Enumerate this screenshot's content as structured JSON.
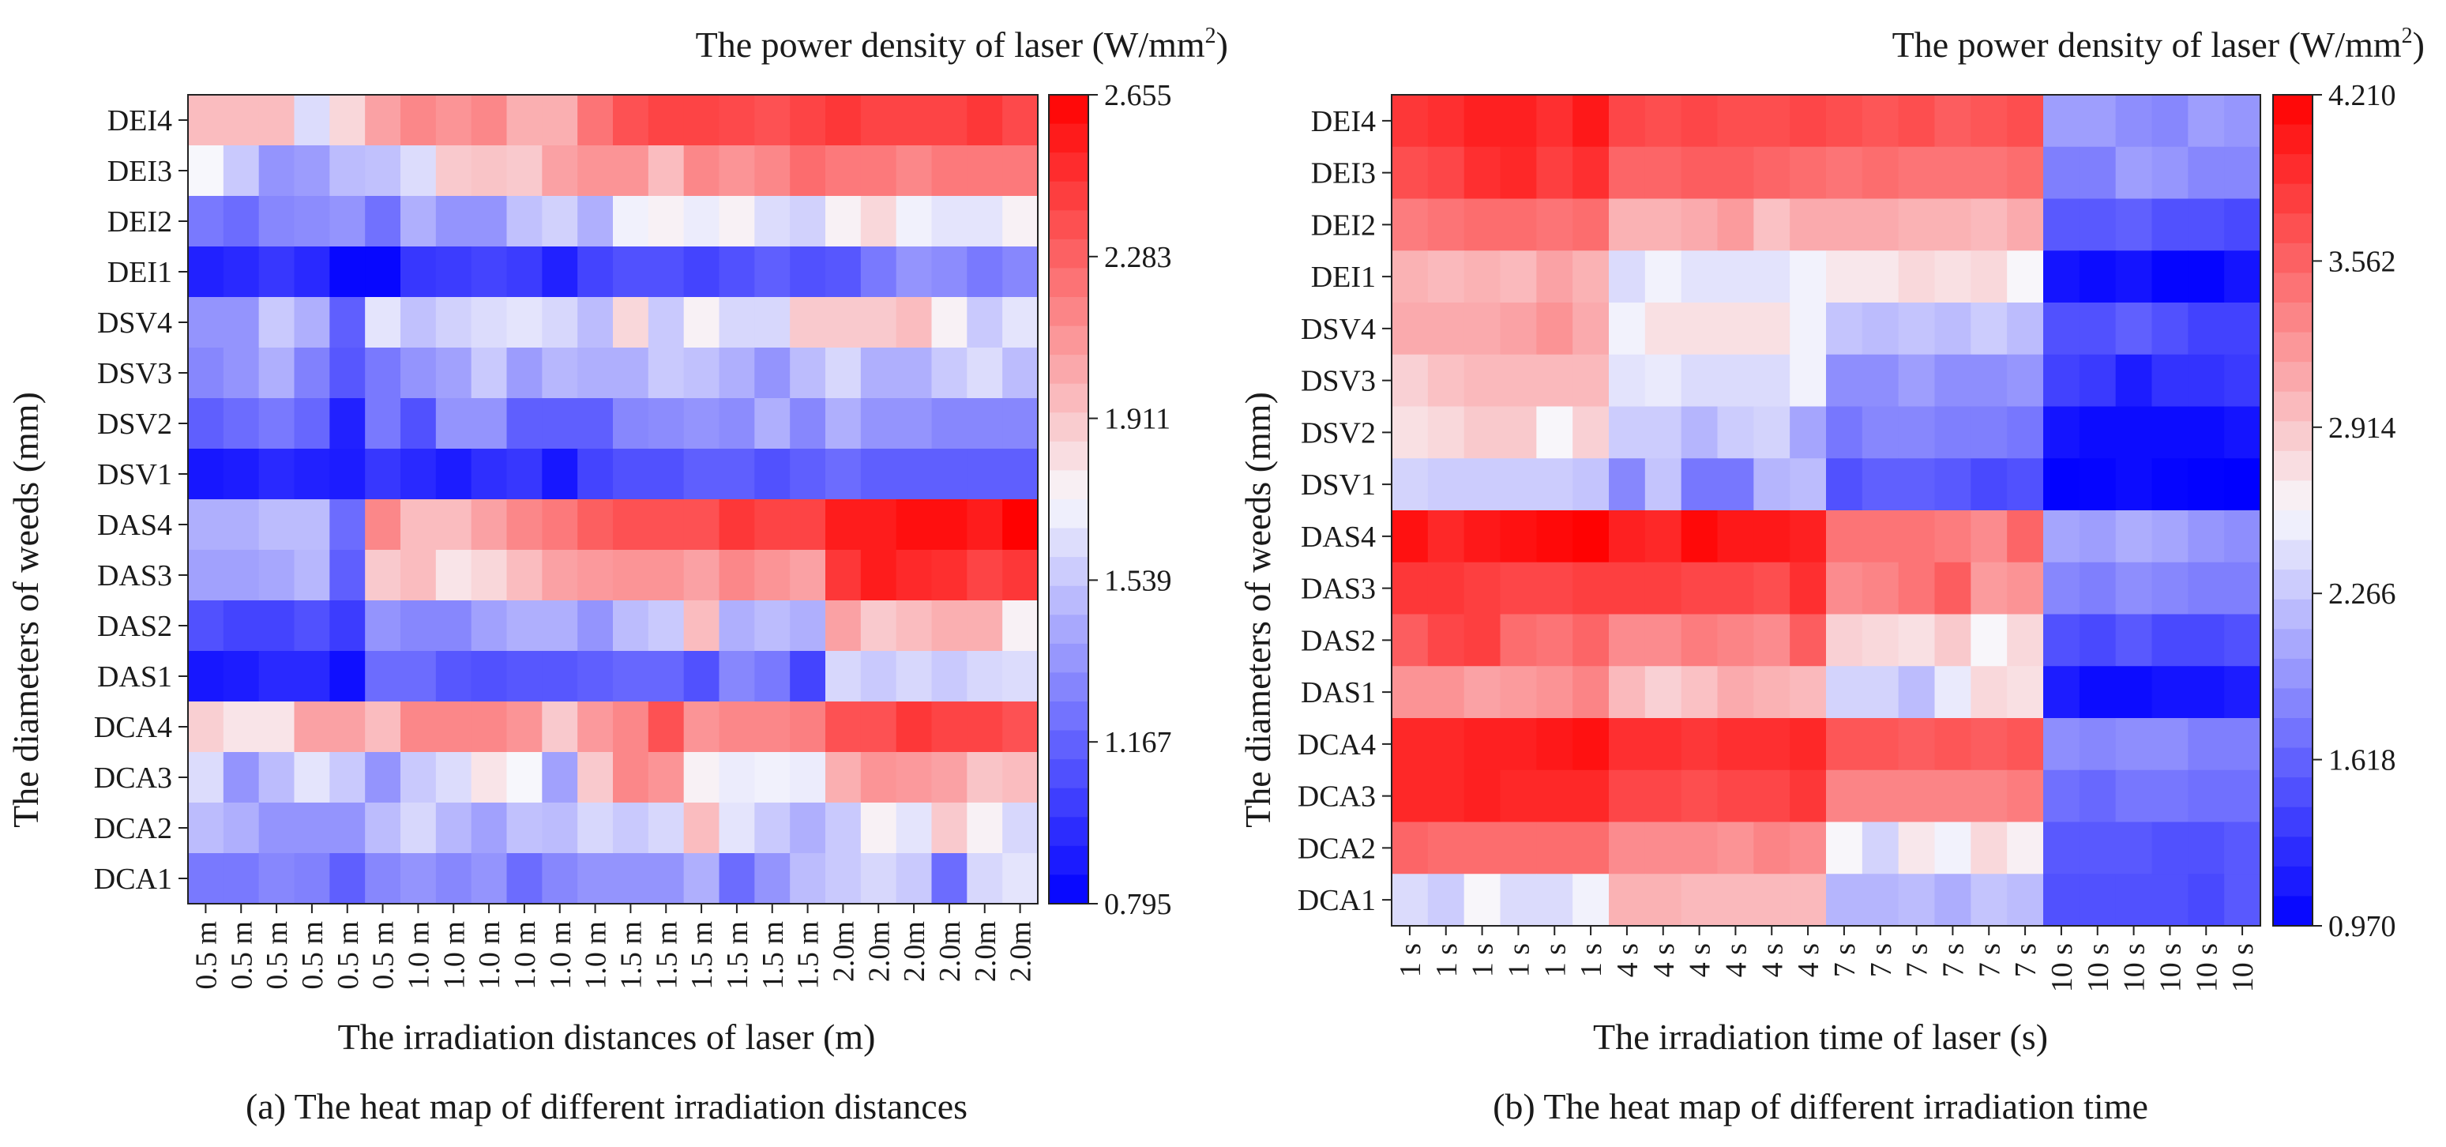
{
  "chart_data": [
    {
      "type": "heatmap",
      "panel": "a",
      "title": "The power density of laser (W/mm",
      "title_superscript": "2",
      "title_suffix": ")",
      "xlabel": "The irradiation distances of laser (m)",
      "ylabel": "The diameters of weeds (mm)",
      "caption": "(a) The heat map of different irradiation distances",
      "rows": [
        "DEI4",
        "DEI3",
        "DEI2",
        "DEI1",
        "DSV4",
        "DSV3",
        "DSV2",
        "DSV1",
        "DAS4",
        "DAS3",
        "DAS2",
        "DAS1",
        "DCA4",
        "DCA3",
        "DCA2",
        "DCA1"
      ],
      "columns": [
        "0.5 m",
        "0.5 m",
        "0.5 m",
        "0.5 m",
        "0.5 m",
        "0.5 m",
        "1.0 m",
        "1.0 m",
        "1.0 m",
        "1.0 m",
        "1.0 m",
        "1.0 m",
        "1.5 m",
        "1.5 m",
        "1.5 m",
        "1.5 m",
        "1.5 m",
        "1.5 m",
        "2.0m",
        "2.0m",
        "2.0m",
        "2.0m",
        "2.0m",
        "2.0m"
      ],
      "colorbar": {
        "min": 0.795,
        "max": 2.655,
        "ticks": [
          "2.655",
          "2.283",
          "1.911",
          "1.539",
          "1.167",
          "0.795"
        ]
      },
      "values": [
        [
          1.95,
          1.95,
          1.95,
          1.62,
          1.85,
          2.05,
          2.15,
          2.1,
          2.15,
          2.0,
          2.0,
          2.22,
          2.35,
          2.4,
          2.4,
          2.38,
          2.35,
          2.4,
          2.45,
          2.4,
          2.4,
          2.4,
          2.45,
          2.38
        ],
        [
          1.72,
          1.55,
          1.35,
          1.38,
          1.5,
          1.52,
          1.62,
          1.9,
          1.92,
          1.9,
          2.05,
          2.1,
          2.1,
          1.95,
          2.15,
          2.1,
          2.15,
          2.25,
          2.2,
          2.2,
          2.15,
          2.2,
          2.2,
          2.2
        ],
        [
          1.25,
          1.2,
          1.3,
          1.32,
          1.35,
          1.22,
          1.45,
          1.35,
          1.35,
          1.52,
          1.58,
          1.45,
          1.7,
          1.75,
          1.68,
          1.75,
          1.62,
          1.58,
          1.75,
          1.85,
          1.7,
          1.65,
          1.65,
          1.75
        ],
        [
          0.92,
          0.95,
          1.0,
          0.95,
          0.82,
          0.82,
          1.0,
          1.02,
          1.05,
          1.02,
          0.92,
          1.05,
          1.1,
          1.1,
          1.05,
          1.1,
          1.15,
          1.1,
          1.12,
          1.25,
          1.35,
          1.32,
          1.25,
          1.3
        ],
        [
          1.35,
          1.35,
          1.55,
          1.45,
          1.15,
          1.65,
          1.52,
          1.58,
          1.62,
          1.65,
          1.6,
          1.5,
          1.85,
          1.55,
          1.75,
          1.6,
          1.6,
          1.9,
          1.9,
          1.9,
          1.95,
          1.75,
          1.55,
          1.65
        ],
        [
          1.3,
          1.35,
          1.45,
          1.28,
          1.12,
          1.25,
          1.35,
          1.4,
          1.55,
          1.38,
          1.48,
          1.45,
          1.45,
          1.55,
          1.52,
          1.45,
          1.35,
          1.5,
          1.6,
          1.45,
          1.45,
          1.55,
          1.62,
          1.5
        ],
        [
          1.15,
          1.2,
          1.25,
          1.18,
          0.92,
          1.25,
          1.1,
          1.35,
          1.35,
          1.15,
          1.15,
          1.15,
          1.3,
          1.32,
          1.35,
          1.32,
          1.45,
          1.3,
          1.45,
          1.35,
          1.35,
          1.3,
          1.3,
          1.3
        ],
        [
          0.88,
          0.9,
          0.95,
          0.92,
          0.9,
          1.0,
          0.95,
          0.9,
          0.97,
          1.0,
          0.88,
          1.05,
          1.1,
          1.1,
          1.15,
          1.15,
          1.1,
          1.15,
          1.2,
          1.15,
          1.15,
          1.15,
          1.15,
          1.15
        ],
        [
          1.45,
          1.45,
          1.5,
          1.5,
          1.2,
          2.15,
          1.95,
          1.95,
          2.05,
          2.15,
          2.2,
          2.3,
          2.35,
          2.35,
          2.35,
          2.45,
          2.4,
          2.4,
          2.55,
          2.55,
          2.6,
          2.6,
          2.55,
          2.65
        ],
        [
          1.4,
          1.4,
          1.42,
          1.48,
          1.15,
          1.9,
          1.95,
          1.8,
          1.85,
          1.95,
          2.05,
          2.08,
          2.1,
          2.1,
          2.05,
          2.15,
          2.1,
          2.05,
          2.45,
          2.55,
          2.5,
          2.48,
          2.4,
          2.45
        ],
        [
          1.1,
          1.05,
          1.05,
          1.1,
          1.02,
          1.35,
          1.3,
          1.3,
          1.4,
          1.45,
          1.45,
          1.35,
          1.5,
          1.55,
          1.95,
          1.45,
          1.5,
          1.45,
          2.05,
          1.9,
          1.95,
          2.0,
          2.0,
          1.75
        ],
        [
          0.88,
          0.9,
          0.95,
          0.95,
          0.85,
          1.2,
          1.2,
          1.12,
          1.1,
          1.12,
          1.12,
          1.15,
          1.18,
          1.18,
          1.1,
          1.3,
          1.25,
          1.05,
          1.6,
          1.55,
          1.6,
          1.55,
          1.6,
          1.62
        ],
        [
          1.88,
          1.8,
          1.8,
          2.05,
          2.05,
          1.95,
          2.15,
          2.15,
          2.15,
          2.1,
          1.9,
          2.08,
          2.15,
          2.35,
          2.1,
          2.15,
          2.15,
          2.18,
          2.35,
          2.35,
          2.45,
          2.4,
          2.4,
          2.35
        ],
        [
          1.62,
          1.35,
          1.5,
          1.65,
          1.55,
          1.35,
          1.55,
          1.62,
          1.8,
          1.72,
          1.4,
          1.9,
          2.15,
          2.1,
          1.75,
          1.68,
          1.7,
          1.68,
          2.0,
          2.1,
          2.08,
          2.05,
          1.92,
          1.95
        ],
        [
          1.5,
          1.45,
          1.35,
          1.35,
          1.35,
          1.5,
          1.6,
          1.48,
          1.4,
          1.52,
          1.5,
          1.6,
          1.55,
          1.6,
          1.95,
          1.65,
          1.55,
          1.45,
          1.55,
          1.75,
          1.65,
          1.9,
          1.75,
          1.6
        ],
        [
          1.25,
          1.25,
          1.3,
          1.28,
          1.15,
          1.3,
          1.35,
          1.3,
          1.35,
          1.2,
          1.3,
          1.35,
          1.35,
          1.35,
          1.45,
          1.2,
          1.35,
          1.5,
          1.55,
          1.6,
          1.55,
          1.2,
          1.6,
          1.65
        ]
      ]
    },
    {
      "type": "heatmap",
      "panel": "b",
      "title": "The power density of laser (W/mm",
      "title_superscript": "2",
      "title_suffix": ")",
      "xlabel": "The irradiation time of laser (s)",
      "ylabel": "The diameters of weeds (mm)",
      "caption": "(b) The heat map of different irradiation time",
      "rows": [
        "DEI4",
        "DEI3",
        "DEI2",
        "DEI1",
        "DSV4",
        "DSV3",
        "DSV2",
        "DSV1",
        "DAS4",
        "DAS3",
        "DAS2",
        "DAS1",
        "DCA4",
        "DCA3",
        "DCA2",
        "DCA1"
      ],
      "columns": [
        "1 s",
        "1 s",
        "1 s",
        "1 s",
        "1 s",
        "1 s",
        "4 s",
        "4 s",
        "4 s",
        "4 s",
        "4 s",
        "4 s",
        "7 s",
        "7 s",
        "7 s",
        "7 s",
        "7 s",
        "7 s",
        "10 s",
        "10 s",
        "10 s",
        "10 s",
        "10 s",
        "10 s"
      ],
      "colorbar": {
        "min": 0.97,
        "max": 4.21,
        "ticks": [
          "4.210",
          "3.562",
          "2.914",
          "2.266",
          "1.618",
          "0.970"
        ]
      },
      "values": [
        [
          3.85,
          3.9,
          4.0,
          4.0,
          3.9,
          4.05,
          3.75,
          3.7,
          3.75,
          3.7,
          3.7,
          3.75,
          3.7,
          3.65,
          3.7,
          3.6,
          3.65,
          3.7,
          2.0,
          2.0,
          1.9,
          1.85,
          2.0,
          1.95
        ],
        [
          3.7,
          3.75,
          3.9,
          3.95,
          3.8,
          3.9,
          3.55,
          3.55,
          3.6,
          3.6,
          3.55,
          3.5,
          3.45,
          3.5,
          3.45,
          3.45,
          3.45,
          3.5,
          1.8,
          1.8,
          2.0,
          1.95,
          1.85,
          1.85
        ],
        [
          3.4,
          3.45,
          3.5,
          3.5,
          3.45,
          3.5,
          3.05,
          3.05,
          3.1,
          3.2,
          2.95,
          3.1,
          3.1,
          3.1,
          3.05,
          3.05,
          3.0,
          3.1,
          1.55,
          1.55,
          1.6,
          1.5,
          1.5,
          1.45
        ],
        [
          3.05,
          3.0,
          3.05,
          3.0,
          3.15,
          3.05,
          2.4,
          2.55,
          2.45,
          2.45,
          2.45,
          2.55,
          2.7,
          2.7,
          2.8,
          2.75,
          2.8,
          2.6,
          1.1,
          1.05,
          1.1,
          1.0,
          1.0,
          1.1
        ],
        [
          3.1,
          3.1,
          3.1,
          3.15,
          3.25,
          3.1,
          2.55,
          2.75,
          2.75,
          2.75,
          2.75,
          2.55,
          2.25,
          2.2,
          2.25,
          2.2,
          2.3,
          2.2,
          1.5,
          1.5,
          1.6,
          1.5,
          1.4,
          1.4
        ],
        [
          2.85,
          2.95,
          3.0,
          3.0,
          3.0,
          3.0,
          2.45,
          2.5,
          2.4,
          2.4,
          2.4,
          2.55,
          1.9,
          1.9,
          2.0,
          1.9,
          1.9,
          1.95,
          1.4,
          1.35,
          1.15,
          1.3,
          1.3,
          1.35
        ],
        [
          2.75,
          2.8,
          2.9,
          2.9,
          2.6,
          2.85,
          2.3,
          2.3,
          2.15,
          2.3,
          2.35,
          2.05,
          1.75,
          1.85,
          1.85,
          1.8,
          1.8,
          1.75,
          1.1,
          1.05,
          1.05,
          1.05,
          1.05,
          1.1
        ],
        [
          2.35,
          2.3,
          2.3,
          2.3,
          2.3,
          2.25,
          1.85,
          2.25,
          1.75,
          1.75,
          2.15,
          2.2,
          1.5,
          1.6,
          1.6,
          1.55,
          1.45,
          1.5,
          0.98,
          1.0,
          1.05,
          1.0,
          0.98,
          0.97
        ],
        [
          4.1,
          3.95,
          4.05,
          4.1,
          4.15,
          4.2,
          4.0,
          3.95,
          4.15,
          4.05,
          4.05,
          4.0,
          3.45,
          3.45,
          3.45,
          3.4,
          3.3,
          3.55,
          2.05,
          2.0,
          2.1,
          2.05,
          1.95,
          1.9
        ],
        [
          3.85,
          3.85,
          3.8,
          3.75,
          3.75,
          3.8,
          3.8,
          3.8,
          3.75,
          3.75,
          3.7,
          3.9,
          3.3,
          3.35,
          3.45,
          3.6,
          3.2,
          3.25,
          1.85,
          1.8,
          1.9,
          1.85,
          1.8,
          1.8
        ],
        [
          3.6,
          3.75,
          3.8,
          3.5,
          3.45,
          3.55,
          3.3,
          3.3,
          3.4,
          3.35,
          3.3,
          3.6,
          2.85,
          2.8,
          2.75,
          2.9,
          2.6,
          2.8,
          1.5,
          1.45,
          1.55,
          1.45,
          1.45,
          1.5
        ],
        [
          3.25,
          3.25,
          3.15,
          3.2,
          3.25,
          3.35,
          3.0,
          2.85,
          2.95,
          3.1,
          3.05,
          3.0,
          2.35,
          2.35,
          2.2,
          2.5,
          2.8,
          2.75,
          1.15,
          1.05,
          1.05,
          1.1,
          1.1,
          1.15
        ],
        [
          3.95,
          3.95,
          4.0,
          4.0,
          4.05,
          4.1,
          3.9,
          3.9,
          3.85,
          3.9,
          3.9,
          3.95,
          3.65,
          3.65,
          3.6,
          3.65,
          3.6,
          3.65,
          1.9,
          1.85,
          1.9,
          1.9,
          1.8,
          1.8
        ],
        [
          3.95,
          3.95,
          4.0,
          3.95,
          3.95,
          3.95,
          3.75,
          3.75,
          3.7,
          3.75,
          3.75,
          3.85,
          3.35,
          3.35,
          3.35,
          3.35,
          3.35,
          3.4,
          1.7,
          1.65,
          1.75,
          1.75,
          1.7,
          1.7
        ],
        [
          3.55,
          3.5,
          3.5,
          3.5,
          3.5,
          3.5,
          3.3,
          3.3,
          3.3,
          3.25,
          3.35,
          3.3,
          2.6,
          2.35,
          2.7,
          2.55,
          2.8,
          2.65,
          1.55,
          1.55,
          1.55,
          1.5,
          1.5,
          1.55
        ],
        [
          2.4,
          2.3,
          2.6,
          2.4,
          2.4,
          2.55,
          3.05,
          3.05,
          3.0,
          3.0,
          3.0,
          3.0,
          2.15,
          2.15,
          2.2,
          2.1,
          2.25,
          2.2,
          1.5,
          1.5,
          1.5,
          1.5,
          1.45,
          1.55
        ]
      ]
    }
  ]
}
